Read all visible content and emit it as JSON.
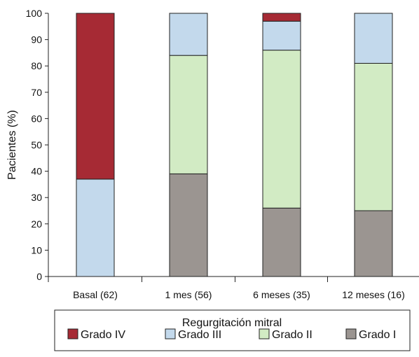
{
  "chart_data": {
    "type": "bar",
    "stacked": true,
    "ylabel": "Pacientes (%)",
    "xlabel": "",
    "ylim": [
      0,
      100
    ],
    "yticks": [
      0,
      10,
      20,
      30,
      40,
      50,
      60,
      70,
      80,
      90,
      100
    ],
    "categories": [
      "Basal (62)",
      "1 mes (56)",
      "6 meses (35)",
      "12 meses (16)"
    ],
    "series": [
      {
        "name": "Grado I",
        "color": "#9b9591",
        "values": [
          0,
          39,
          26,
          25
        ]
      },
      {
        "name": "Grado II",
        "color": "#d2ebc4",
        "values": [
          0,
          45,
          60,
          56
        ]
      },
      {
        "name": "Grado III",
        "color": "#c3d9ec",
        "values": [
          37,
          16,
          11,
          19
        ]
      },
      {
        "name": "Grado IV",
        "color": "#a62a34",
        "values": [
          63,
          0,
          3,
          0
        ]
      }
    ],
    "legend": {
      "title": "Regurgitación mitral",
      "placement": "bottom",
      "order": [
        "Grado IV",
        "Grado III",
        "Grado II",
        "Grado I"
      ]
    },
    "grid": false
  }
}
